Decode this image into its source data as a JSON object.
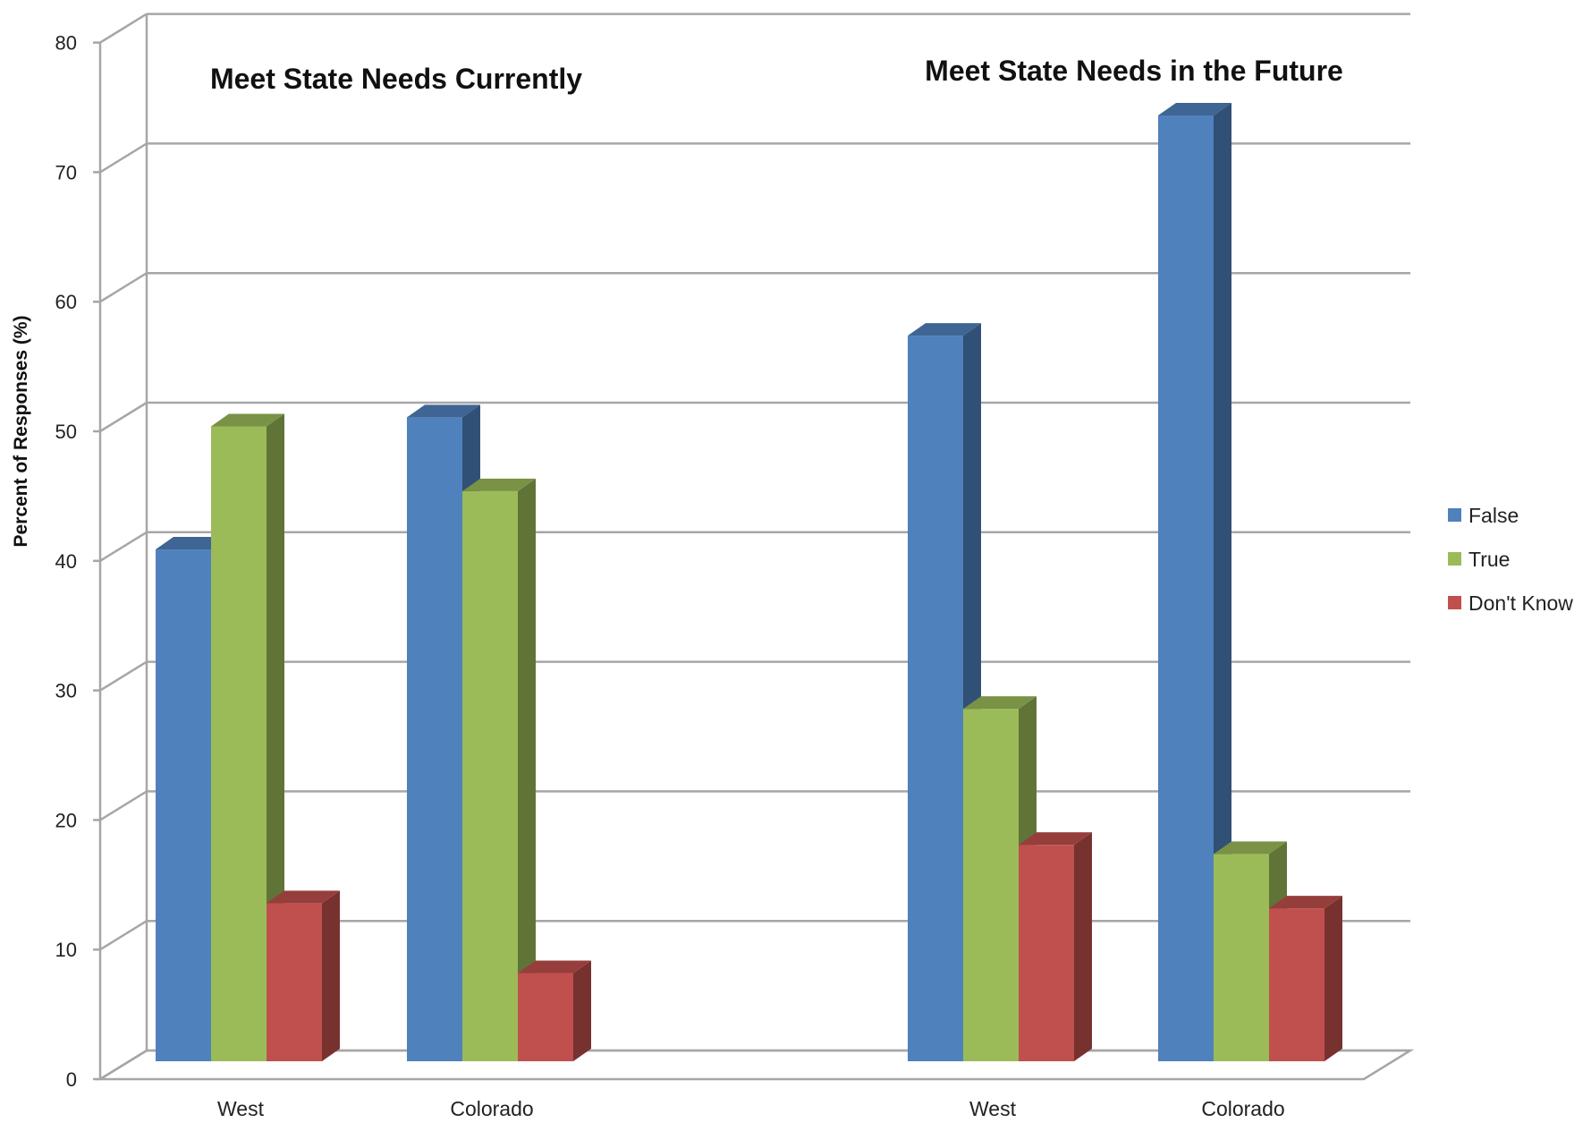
{
  "chart_data": {
    "type": "bar",
    "style": "3d-clustered-column",
    "ylabel": "Percent of Responses (%)",
    "ylim": [
      0,
      80
    ],
    "yticks": [
      0,
      10,
      20,
      30,
      40,
      50,
      60,
      70,
      80
    ],
    "grid": true,
    "legend_position": "right",
    "groups": [
      {
        "title": "Meet State Needs Currently",
        "categories": [
          "West",
          "Colorado"
        ]
      },
      {
        "title": "Meet State Needs in the Future",
        "categories": [
          "West",
          "Colorado"
        ]
      }
    ],
    "categories": [
      "West",
      "Colorado",
      "West",
      "Colorado"
    ],
    "series": [
      {
        "name": "False",
        "color": "#4F81BD",
        "values": [
          39.5,
          49.7,
          56,
          73
        ]
      },
      {
        "name": "True",
        "color": "#9BBB59",
        "values": [
          49,
          44,
          27.2,
          16
        ]
      },
      {
        "name": "Don't Know",
        "color": "#C0504D",
        "values": [
          12.2,
          6.8,
          16.7,
          11.8
        ]
      }
    ]
  }
}
